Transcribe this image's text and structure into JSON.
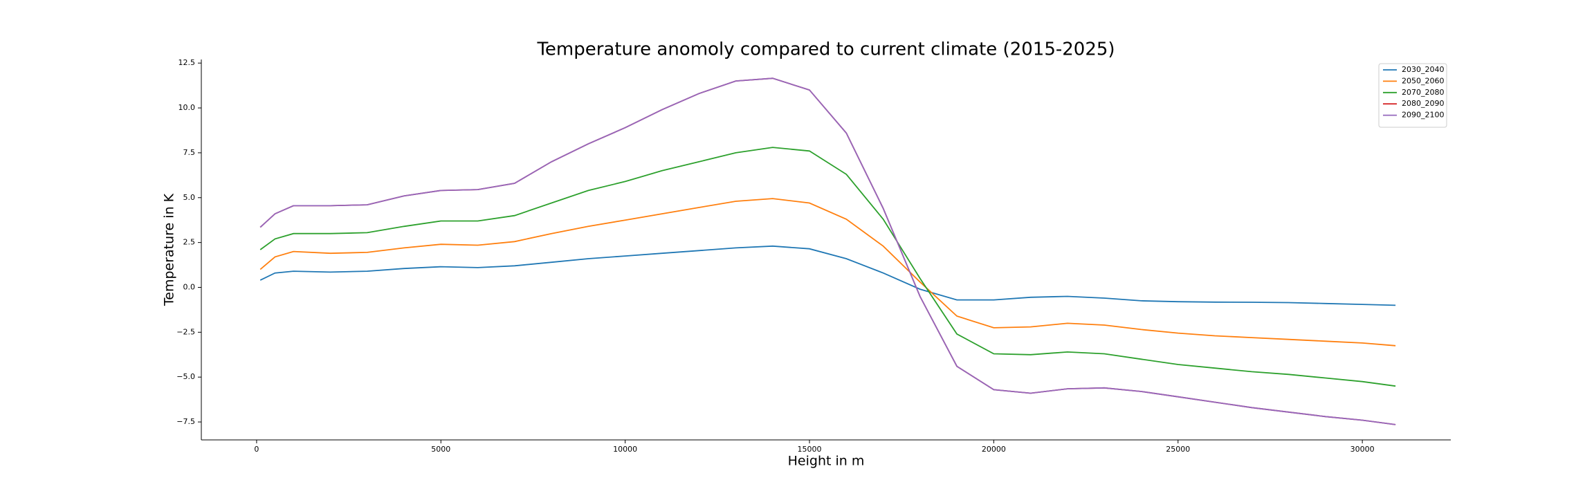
{
  "chart_data": {
    "type": "line",
    "title": "Temperature anomoly compared to current climate (2015-2025)",
    "xlabel": "Height in m",
    "ylabel": "Temperature in K",
    "x": [
      100,
      500,
      1000,
      2000,
      3000,
      4000,
      5000,
      6000,
      7000,
      8000,
      9000,
      10000,
      11000,
      12000,
      13000,
      14000,
      15000,
      16000,
      17000,
      18000,
      19000,
      20000,
      21000,
      22000,
      23000,
      24000,
      25000,
      26000,
      27000,
      28000,
      29000,
      30000,
      30900
    ],
    "series": [
      {
        "name": "2030_2040",
        "color": "#1f77b4",
        "values": [
          0.4,
          0.8,
          0.9,
          0.85,
          0.9,
          1.05,
          1.15,
          1.1,
          1.2,
          1.4,
          1.6,
          1.75,
          1.9,
          2.05,
          2.2,
          2.3,
          2.15,
          1.6,
          0.8,
          -0.1,
          -0.7,
          -0.7,
          -0.55,
          -0.5,
          -0.6,
          -0.75,
          -0.8,
          -0.82,
          -0.83,
          -0.85,
          -0.9,
          -0.95,
          -1.0
        ]
      },
      {
        "name": "2050_2060",
        "color": "#ff7f0e",
        "values": [
          1.0,
          1.7,
          2.0,
          1.9,
          1.95,
          2.2,
          2.4,
          2.35,
          2.55,
          3.0,
          3.4,
          3.75,
          4.1,
          4.45,
          4.8,
          4.95,
          4.7,
          3.8,
          2.3,
          0.3,
          -1.6,
          -2.25,
          -2.2,
          -2.0,
          -2.1,
          -2.35,
          -2.55,
          -2.7,
          -2.8,
          -2.9,
          -3.0,
          -3.1,
          -3.25
        ]
      },
      {
        "name": "2070_2080",
        "color": "#2ca02c",
        "values": [
          2.1,
          2.7,
          3.0,
          3.0,
          3.05,
          3.4,
          3.7,
          3.7,
          4.0,
          4.7,
          5.4,
          5.9,
          6.5,
          7.0,
          7.5,
          7.8,
          7.6,
          6.3,
          3.8,
          0.5,
          -2.6,
          -3.7,
          -3.75,
          -3.6,
          -3.7,
          -4.0,
          -4.3,
          -4.5,
          -4.7,
          -4.85,
          -5.05,
          -5.25,
          -5.5
        ]
      },
      {
        "name": "2080_2090",
        "color": "#d62728",
        "values": [
          3.35,
          4.1,
          4.55,
          4.55,
          4.6,
          5.1,
          5.4,
          5.45,
          5.8,
          7.0,
          8.0,
          8.9,
          9.9,
          10.8,
          11.5,
          11.65,
          11.0,
          8.6,
          4.4,
          -0.5,
          -4.4,
          -5.7,
          -5.9,
          -5.65,
          -5.6,
          -5.8,
          -6.1,
          -6.4,
          -6.7,
          -6.95,
          -7.2,
          -7.4,
          -7.65
        ]
      },
      {
        "name": "2090_2100",
        "color": "#9467bd",
        "values": [
          3.35,
          4.1,
          4.55,
          4.55,
          4.6,
          5.1,
          5.4,
          5.45,
          5.8,
          7.0,
          8.0,
          8.9,
          9.9,
          10.8,
          11.5,
          11.65,
          11.0,
          8.6,
          4.4,
          -0.5,
          -4.4,
          -5.7,
          -5.9,
          -5.65,
          -5.6,
          -5.8,
          -6.1,
          -6.4,
          -6.7,
          -6.95,
          -7.2,
          -7.4,
          -7.65
        ]
      }
    ],
    "xlim": [
      -1500,
      32400
    ],
    "xticks": [
      0,
      5000,
      10000,
      15000,
      20000,
      25000,
      30000
    ],
    "ylim": [
      -8.5,
      12.7
    ],
    "yticks": [
      {
        "value": -7.5,
        "label": "−7.5"
      },
      {
        "value": -5,
        "label": "−5.0"
      },
      {
        "value": -2.5,
        "label": "−2.5"
      },
      {
        "value": 0,
        "label": "0.0"
      },
      {
        "value": 2.5,
        "label": "2.5"
      },
      {
        "value": 5,
        "label": "5.0"
      },
      {
        "value": 7.5,
        "label": "7.5"
      },
      {
        "value": 10,
        "label": "10.0"
      },
      {
        "value": 12.5,
        "label": "12.5"
      }
    ],
    "legend": "upper right",
    "grid": false
  }
}
